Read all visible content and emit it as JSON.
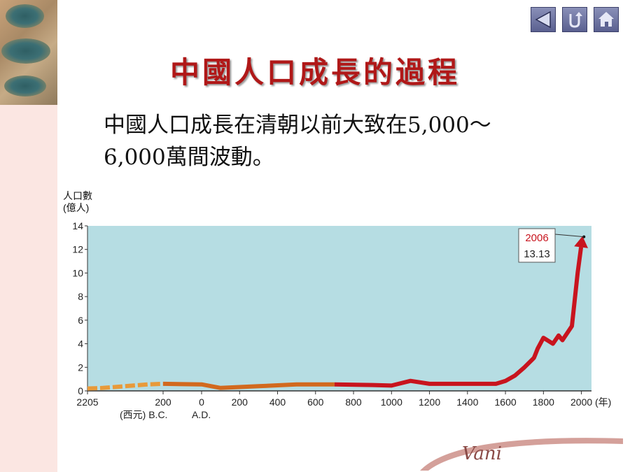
{
  "header": {
    "title": "中國人口成長的過程",
    "nav": [
      {
        "name": "back-icon"
      },
      {
        "name": "return-icon"
      },
      {
        "name": "home-icon"
      }
    ]
  },
  "body": {
    "line1": "中國人口成長在清朝以前大致在5,000～",
    "line2": "6,000萬間波動。"
  },
  "footer": {
    "signature": "Vani"
  },
  "colors": {
    "plot_bg": "#b6dde3",
    "early": "#e89a3a",
    "middle": "#d2691e",
    "late": "#c8141e",
    "title": "#b01818"
  },
  "chart_data": {
    "type": "line",
    "ylabel_line1": "人口數",
    "ylabel_line2": "(億人)",
    "ylim": [
      0,
      14
    ],
    "yticks": [
      "0",
      "2",
      "4",
      "6",
      "8",
      "10",
      "12",
      "14"
    ],
    "xticks": [
      {
        "value": -2205,
        "label": "2205"
      },
      {
        "value": -200,
        "label": "200"
      },
      {
        "value": 0,
        "label": "0"
      },
      {
        "value": 200,
        "label": "200"
      },
      {
        "value": 400,
        "label": "400"
      },
      {
        "value": 600,
        "label": "600"
      },
      {
        "value": 800,
        "label": "800"
      },
      {
        "value": 1000,
        "label": "1000"
      },
      {
        "value": 1200,
        "label": "1200"
      },
      {
        "value": 1400,
        "label": "1400"
      },
      {
        "value": 1600,
        "label": "1600"
      },
      {
        "value": 1800,
        "label": "1800"
      },
      {
        "value": 2000,
        "label": "2000"
      }
    ],
    "x_unit": "(年)",
    "bc_label": "(西元) B.C.",
    "ad_label": "A.D.",
    "series": [
      {
        "x": [
          -2205,
          -1800,
          -1400,
          -1000,
          -600,
          -200,
          0,
          100,
          300,
          500,
          700,
          900,
          1000,
          1100,
          1200,
          1300,
          1400,
          1500,
          1550,
          1600,
          1650,
          1700,
          1750,
          1770,
          1800,
          1830,
          1850,
          1880,
          1900,
          1950,
          1980,
          2006
        ],
        "y": [
          0.2,
          0.25,
          0.35,
          0.45,
          0.55,
          0.6,
          0.55,
          0.25,
          0.4,
          0.55,
          0.55,
          0.5,
          0.45,
          0.85,
          0.6,
          0.6,
          0.6,
          0.6,
          0.6,
          0.85,
          1.3,
          2.0,
          2.8,
          3.6,
          4.5,
          4.2,
          4.0,
          4.7,
          4.3,
          5.5,
          10.0,
          13.13
        ]
      }
    ],
    "annotation": {
      "year": "2006",
      "value": "13.13"
    }
  }
}
